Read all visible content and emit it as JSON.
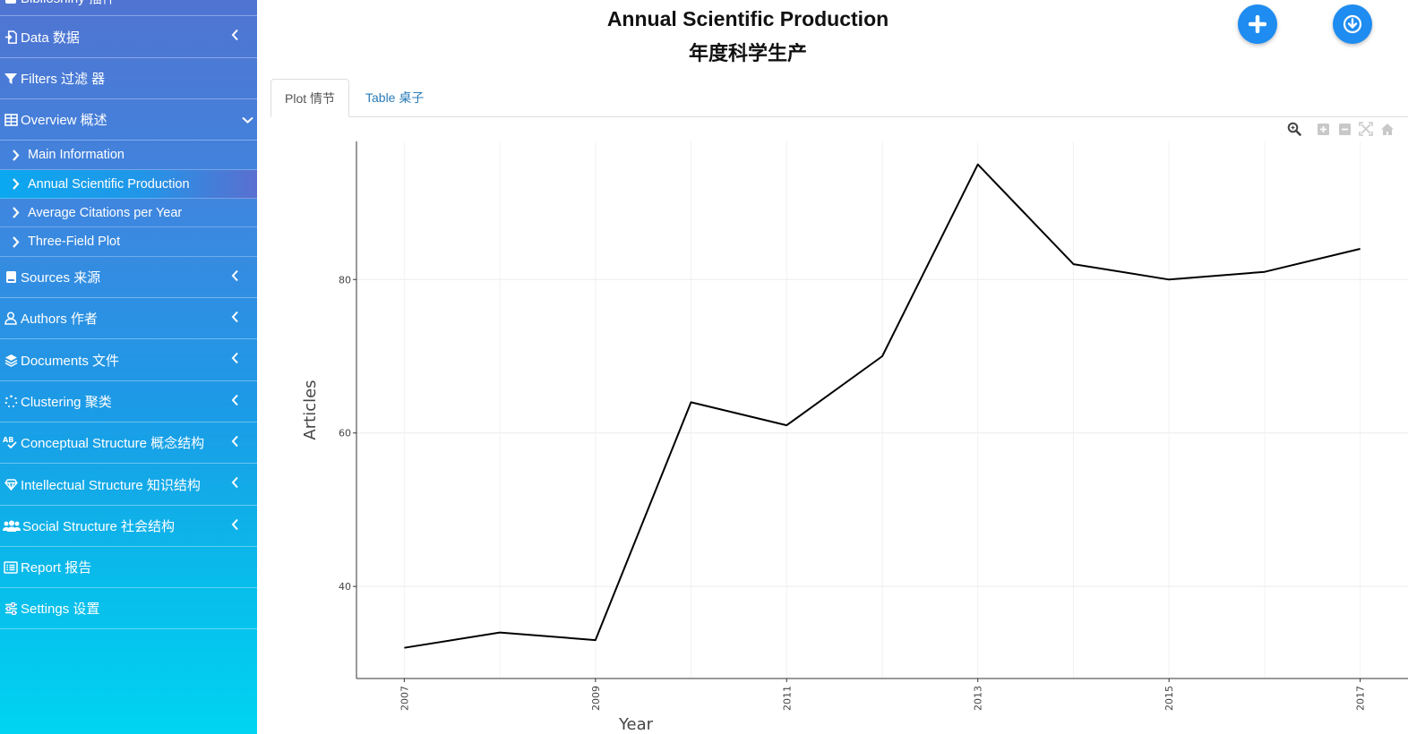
{
  "sidebar": {
    "top_partial_label": "Biblioshiny 插件",
    "items": [
      {
        "label": "Data 数据",
        "icon": "data-import-icon"
      },
      {
        "label": "Filters 过滤 器",
        "icon": "filter-icon"
      },
      {
        "label": "Overview 概述",
        "icon": "table-icon",
        "expanded": true
      },
      {
        "label": "Sources 来源",
        "icon": "book-icon"
      },
      {
        "label": "Authors 作者",
        "icon": "user-icon"
      },
      {
        "label": "Documents 文件",
        "icon": "layers-icon"
      },
      {
        "label": "Clustering 聚类",
        "icon": "spinner-icon"
      },
      {
        "label": "Conceptual Structure 概念结构",
        "icon": "spellcheck-icon"
      },
      {
        "label": "Intellectual Structure 知识结构",
        "icon": "gem-icon"
      },
      {
        "label": "Social Structure 社会结构",
        "icon": "users-icon"
      },
      {
        "label": "Report 报告",
        "icon": "list-alt-icon"
      },
      {
        "label": "Settings 设置",
        "icon": "sliders-icon"
      }
    ],
    "subitems": [
      {
        "label": "Main Information"
      },
      {
        "label": "Annual Scientific Production",
        "active": true
      },
      {
        "label": "Average Citations per Year"
      },
      {
        "label": "Three-Field Plot"
      }
    ]
  },
  "header": {
    "title": "Annual Scientific Production",
    "subtitle": "年度科学生产"
  },
  "tabs": {
    "plot": "Plot 情节",
    "table": "Table 桌子"
  },
  "colors": {
    "accent": "#1e8cf0",
    "tab_link": "#2a7bb8",
    "line": "#000000"
  },
  "chart_data": {
    "type": "line",
    "x": [
      2007,
      2008,
      2009,
      2010,
      2011,
      2012,
      2013,
      2014,
      2015,
      2016,
      2017
    ],
    "y": [
      32,
      34,
      33,
      64,
      61,
      70,
      95,
      82,
      80,
      81,
      84
    ],
    "xlabel": "Year",
    "ylabel": "Articles",
    "x_ticks": [
      "2007",
      "2009",
      "2011",
      "2013",
      "2015",
      "2017"
    ],
    "y_ticks": [
      "40",
      "60",
      "80"
    ],
    "xlim": [
      2006.5,
      2017.5
    ],
    "ylim": [
      28,
      98
    ],
    "grid": true
  }
}
